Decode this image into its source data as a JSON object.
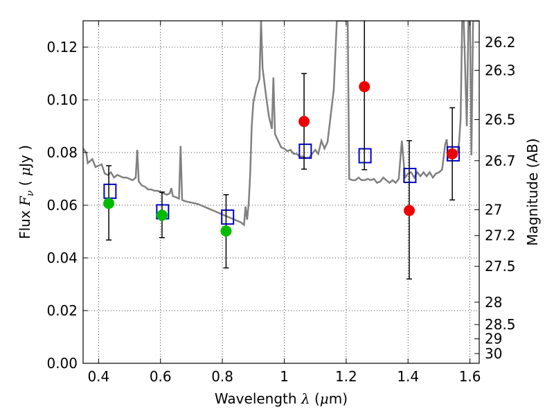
{
  "chart_data": {
    "type": "scatter",
    "xlabel": "Wavelength  λ (μm)",
    "ylabel": "Flux  Fν  ( μJy )",
    "y2label": "Magnitude (AB)",
    "xlim": [
      0.35,
      1.63
    ],
    "ylim": [
      0.0,
      0.13
    ],
    "grid": true,
    "x_ticks": [
      0.4,
      0.6,
      0.8,
      1.0,
      1.2,
      1.4,
      1.6
    ],
    "x_tick_labels": [
      "0.4",
      "0.6",
      "0.8",
      "1",
      "1.2",
      "1.4",
      "1.6"
    ],
    "y_ticks": [
      0.0,
      0.02,
      0.04,
      0.06,
      0.08,
      0.1,
      0.12
    ],
    "y_tick_labels": [
      "0.00",
      "0.02",
      "0.04",
      "0.06",
      "0.08",
      "0.10",
      "0.12"
    ],
    "y2_ticks": [
      {
        "label": "26.2",
        "flux": 0.1219
      },
      {
        "label": "26.3",
        "flux": 0.1112
      },
      {
        "label": "26.5",
        "flux": 0.0925
      },
      {
        "label": "26.7",
        "flux": 0.0769
      },
      {
        "label": "27",
        "flux": 0.0583
      },
      {
        "label": "27.2",
        "flux": 0.0485
      },
      {
        "label": "27.5",
        "flux": 0.0368
      },
      {
        "label": "28",
        "flux": 0.0232
      },
      {
        "label": "28.5",
        "flux": 0.0147
      },
      {
        "label": "29",
        "flux": 0.0093
      },
      {
        "label": "30",
        "flux": 0.0037
      }
    ],
    "series": [
      {
        "kind": "spectrum",
        "color": "#808080",
        "points": [
          [
            0.35,
            0.0815
          ],
          [
            0.36,
            0.08
          ],
          [
            0.365,
            0.076
          ],
          [
            0.37,
            0.0765
          ],
          [
            0.38,
            0.0775
          ],
          [
            0.39,
            0.0745
          ],
          [
            0.4,
            0.075
          ],
          [
            0.41,
            0.0755
          ],
          [
            0.42,
            0.072
          ],
          [
            0.43,
            0.0715
          ],
          [
            0.44,
            0.0725
          ],
          [
            0.45,
            0.0705
          ],
          [
            0.46,
            0.0715
          ],
          [
            0.47,
            0.071
          ],
          [
            0.48,
            0.0705
          ],
          [
            0.49,
            0.0705
          ],
          [
            0.5,
            0.07
          ],
          [
            0.51,
            0.0695
          ],
          [
            0.52,
            0.0705
          ],
          [
            0.525,
            0.081
          ],
          [
            0.53,
            0.069
          ],
          [
            0.54,
            0.0675
          ],
          [
            0.55,
            0.067
          ],
          [
            0.56,
            0.066
          ],
          [
            0.57,
            0.066
          ],
          [
            0.58,
            0.0655
          ],
          [
            0.59,
            0.0655
          ],
          [
            0.6,
            0.065
          ],
          [
            0.61,
            0.0645
          ],
          [
            0.62,
            0.064
          ],
          [
            0.63,
            0.0645
          ],
          [
            0.635,
            0.0665
          ],
          [
            0.64,
            0.0635
          ],
          [
            0.65,
            0.063
          ],
          [
            0.66,
            0.0625
          ],
          [
            0.665,
            0.0825
          ],
          [
            0.67,
            0.062
          ],
          [
            0.68,
            0.0615
          ],
          [
            0.7,
            0.061
          ],
          [
            0.72,
            0.0605
          ],
          [
            0.74,
            0.0595
          ],
          [
            0.76,
            0.0585
          ],
          [
            0.78,
            0.0575
          ],
          [
            0.8,
            0.0565
          ],
          [
            0.82,
            0.0555
          ],
          [
            0.84,
            0.0545
          ],
          [
            0.85,
            0.054
          ],
          [
            0.86,
            0.0535
          ],
          [
            0.87,
            0.0525
          ],
          [
            0.875,
            0.0595
          ],
          [
            0.88,
            0.0545
          ],
          [
            0.885,
            0.0605
          ],
          [
            0.89,
            0.072
          ],
          [
            0.895,
            0.09
          ],
          [
            0.9,
            0.099
          ],
          [
            0.91,
            0.1045
          ],
          [
            0.92,
            0.108
          ],
          [
            0.925,
            0.13
          ],
          [
            0.93,
            0.112
          ],
          [
            0.94,
            0.1025
          ],
          [
            0.95,
            0.094
          ],
          [
            0.96,
            0.089
          ],
          [
            0.965,
            0.1085
          ],
          [
            0.97,
            0.087
          ],
          [
            0.98,
            0.0845
          ],
          [
            0.99,
            0.082
          ],
          [
            1.0,
            0.0815
          ],
          [
            1.01,
            0.0805
          ],
          [
            1.02,
            0.081
          ],
          [
            1.03,
            0.0795
          ],
          [
            1.04,
            0.0795
          ],
          [
            1.05,
            0.0785
          ],
          [
            1.06,
            0.0785
          ],
          [
            1.07,
            0.078
          ],
          [
            1.08,
            0.078
          ],
          [
            1.09,
            0.0795
          ],
          [
            1.1,
            0.081
          ],
          [
            1.11,
            0.0795
          ],
          [
            1.12,
            0.0845
          ],
          [
            1.13,
            0.0815
          ],
          [
            1.14,
            0.084
          ],
          [
            1.15,
            0.094
          ],
          [
            1.16,
            0.104
          ],
          [
            1.17,
            0.13
          ],
          [
            1.18,
            0.13
          ],
          [
            1.19,
            0.13
          ],
          [
            1.2,
            0.13
          ],
          [
            1.205,
            0.13
          ],
          [
            1.21,
            0.07
          ],
          [
            1.22,
            0.0695
          ],
          [
            1.23,
            0.0695
          ],
          [
            1.24,
            0.0705
          ],
          [
            1.25,
            0.0695
          ],
          [
            1.26,
            0.0695
          ],
          [
            1.27,
            0.07
          ],
          [
            1.28,
            0.0695
          ],
          [
            1.29,
            0.07
          ],
          [
            1.3,
            0.0685
          ],
          [
            1.31,
            0.069
          ],
          [
            1.32,
            0.0705
          ],
          [
            1.33,
            0.0695
          ],
          [
            1.34,
            0.0685
          ],
          [
            1.35,
            0.0695
          ],
          [
            1.36,
            0.0685
          ],
          [
            1.37,
            0.07
          ],
          [
            1.38,
            0.0845
          ],
          [
            1.39,
            0.0705
          ],
          [
            1.4,
            0.072
          ],
          [
            1.41,
            0.0725
          ],
          [
            1.42,
            0.0705
          ],
          [
            1.43,
            0.0725
          ],
          [
            1.44,
            0.071
          ],
          [
            1.45,
            0.0725
          ],
          [
            1.46,
            0.071
          ],
          [
            1.47,
            0.0725
          ],
          [
            1.48,
            0.0705
          ],
          [
            1.49,
            0.072
          ],
          [
            1.5,
            0.0725
          ],
          [
            1.51,
            0.0735
          ],
          [
            1.52,
            0.083
          ],
          [
            1.525,
            0.085
          ],
          [
            1.53,
            0.078
          ],
          [
            1.54,
            0.08
          ],
          [
            1.55,
            0.08
          ],
          [
            1.56,
            0.08
          ],
          [
            1.565,
            0.084
          ],
          [
            1.57,
            0.093
          ],
          [
            1.575,
            0.13
          ],
          [
            1.58,
            0.13
          ],
          [
            1.59,
            0.09
          ],
          [
            1.595,
            0.13
          ],
          [
            1.6,
            0.13
          ],
          [
            1.605,
            0.079
          ],
          [
            1.61,
            0.13
          ],
          [
            1.63,
            0.13
          ]
        ]
      },
      {
        "kind": "model-squares",
        "color": "#0000cc",
        "points": [
          [
            0.437,
            0.0653
          ],
          [
            0.607,
            0.0575
          ],
          [
            0.817,
            0.0555
          ],
          [
            1.068,
            0.0805
          ],
          [
            1.261,
            0.0788
          ],
          [
            1.406,
            0.0713
          ],
          [
            1.546,
            0.0795
          ]
        ]
      },
      {
        "kind": "detections",
        "color": "#00bb00",
        "points": [
          {
            "x": 0.433,
            "y": 0.0607,
            "lo": 0.0468,
            "hi": 0.075
          },
          {
            "x": 0.605,
            "y": 0.0562,
            "lo": 0.0477,
            "hi": 0.065
          },
          {
            "x": 0.812,
            "y": 0.0502,
            "lo": 0.0362,
            "hi": 0.064
          }
        ]
      },
      {
        "kind": "detections",
        "color": "#ee0000",
        "points": [
          {
            "x": 1.064,
            "y": 0.0918,
            "lo": 0.0737,
            "hi": 0.11
          },
          {
            "x": 1.259,
            "y": 0.105,
            "lo": 0.0735,
            "hi": 0.136
          },
          {
            "x": 1.404,
            "y": 0.058,
            "lo": 0.032,
            "hi": 0.0845
          },
          {
            "x": 1.543,
            "y": 0.0795,
            "lo": 0.062,
            "hi": 0.097
          }
        ]
      }
    ]
  }
}
